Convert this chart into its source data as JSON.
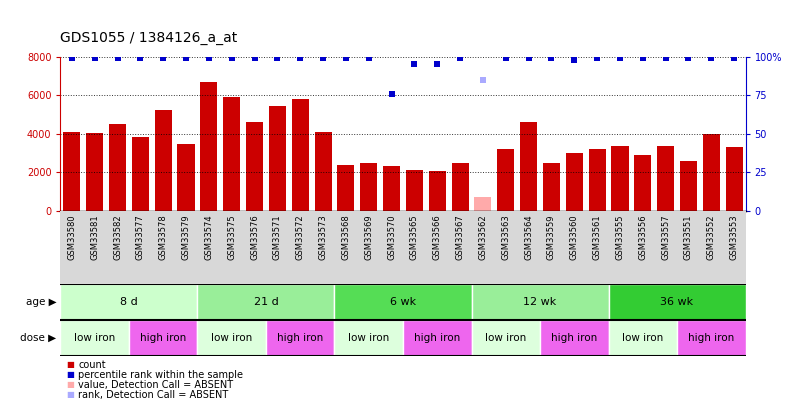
{
  "title": "GDS1055 / 1384126_a_at",
  "samples": [
    "GSM33580",
    "GSM33581",
    "GSM33582",
    "GSM33577",
    "GSM33578",
    "GSM33579",
    "GSM33574",
    "GSM33575",
    "GSM33576",
    "GSM33571",
    "GSM33572",
    "GSM33573",
    "GSM33568",
    "GSM33569",
    "GSM33570",
    "GSM33565",
    "GSM33566",
    "GSM33567",
    "GSM33562",
    "GSM33563",
    "GSM33564",
    "GSM33559",
    "GSM33560",
    "GSM33561",
    "GSM33555",
    "GSM33556",
    "GSM33557",
    "GSM33551",
    "GSM33552",
    "GSM33553"
  ],
  "counts": [
    4100,
    4050,
    4500,
    3850,
    5250,
    3450,
    6700,
    5900,
    4600,
    5450,
    5800,
    4100,
    2350,
    2450,
    2300,
    2100,
    2050,
    2450,
    700,
    3200,
    4600,
    2500,
    3000,
    3200,
    3350,
    2900,
    3350,
    2600,
    4000,
    3300
  ],
  "absent_bars": [
    false,
    false,
    false,
    false,
    false,
    false,
    false,
    false,
    false,
    false,
    false,
    false,
    false,
    false,
    false,
    false,
    false,
    false,
    true,
    false,
    false,
    false,
    false,
    false,
    false,
    false,
    false,
    false,
    false,
    false
  ],
  "percentile_ranks": [
    99,
    99,
    99,
    99,
    99,
    99,
    99,
    99,
    99,
    99,
    99,
    99,
    99,
    99,
    76,
    95,
    95,
    99,
    85,
    99,
    99,
    99,
    98,
    99,
    99,
    99,
    99,
    99,
    99,
    99
  ],
  "absent_ranks": [
    false,
    false,
    false,
    false,
    false,
    false,
    false,
    false,
    false,
    false,
    false,
    false,
    false,
    false,
    false,
    false,
    false,
    false,
    true,
    false,
    false,
    false,
    false,
    false,
    false,
    false,
    false,
    false,
    false,
    false
  ],
  "age_groups": [
    {
      "label": "8 d",
      "start": 0,
      "end": 5,
      "color": "#ccffcc"
    },
    {
      "label": "21 d",
      "start": 6,
      "end": 11,
      "color": "#99ee99"
    },
    {
      "label": "6 wk",
      "start": 12,
      "end": 17,
      "color": "#55dd55"
    },
    {
      "label": "12 wk",
      "start": 18,
      "end": 23,
      "color": "#99ee99"
    },
    {
      "label": "36 wk",
      "start": 24,
      "end": 29,
      "color": "#33cc33"
    }
  ],
  "dose_groups": [
    {
      "label": "low iron",
      "start": 0,
      "end": 2,
      "color": "#ddffdd"
    },
    {
      "label": "high iron",
      "start": 3,
      "end": 5,
      "color": "#ee66ee"
    },
    {
      "label": "low iron",
      "start": 6,
      "end": 8,
      "color": "#ddffdd"
    },
    {
      "label": "high iron",
      "start": 9,
      "end": 11,
      "color": "#ee66ee"
    },
    {
      "label": "low iron",
      "start": 12,
      "end": 14,
      "color": "#ddffdd"
    },
    {
      "label": "high iron",
      "start": 15,
      "end": 17,
      "color": "#ee66ee"
    },
    {
      "label": "low iron",
      "start": 18,
      "end": 20,
      "color": "#ddffdd"
    },
    {
      "label": "high iron",
      "start": 21,
      "end": 23,
      "color": "#ee66ee"
    },
    {
      "label": "low iron",
      "start": 24,
      "end": 26,
      "color": "#ddffdd"
    },
    {
      "label": "high iron",
      "start": 27,
      "end": 29,
      "color": "#ee66ee"
    }
  ],
  "ylim_left": [
    0,
    8000
  ],
  "ylim_right": [
    0,
    100
  ],
  "bar_color": "#cc0000",
  "absent_bar_color": "#ffaaaa",
  "rank_color": "#0000cc",
  "absent_rank_color": "#aaaaff",
  "title_fontsize": 10,
  "tick_fontsize": 6,
  "label_fontsize": 8,
  "legend_fontsize": 7.5,
  "ytick_left": [
    0,
    2000,
    4000,
    6000,
    8000
  ],
  "ytick_right": [
    0,
    25,
    50,
    75,
    100
  ],
  "xtick_bg_color": "#d8d8d8"
}
